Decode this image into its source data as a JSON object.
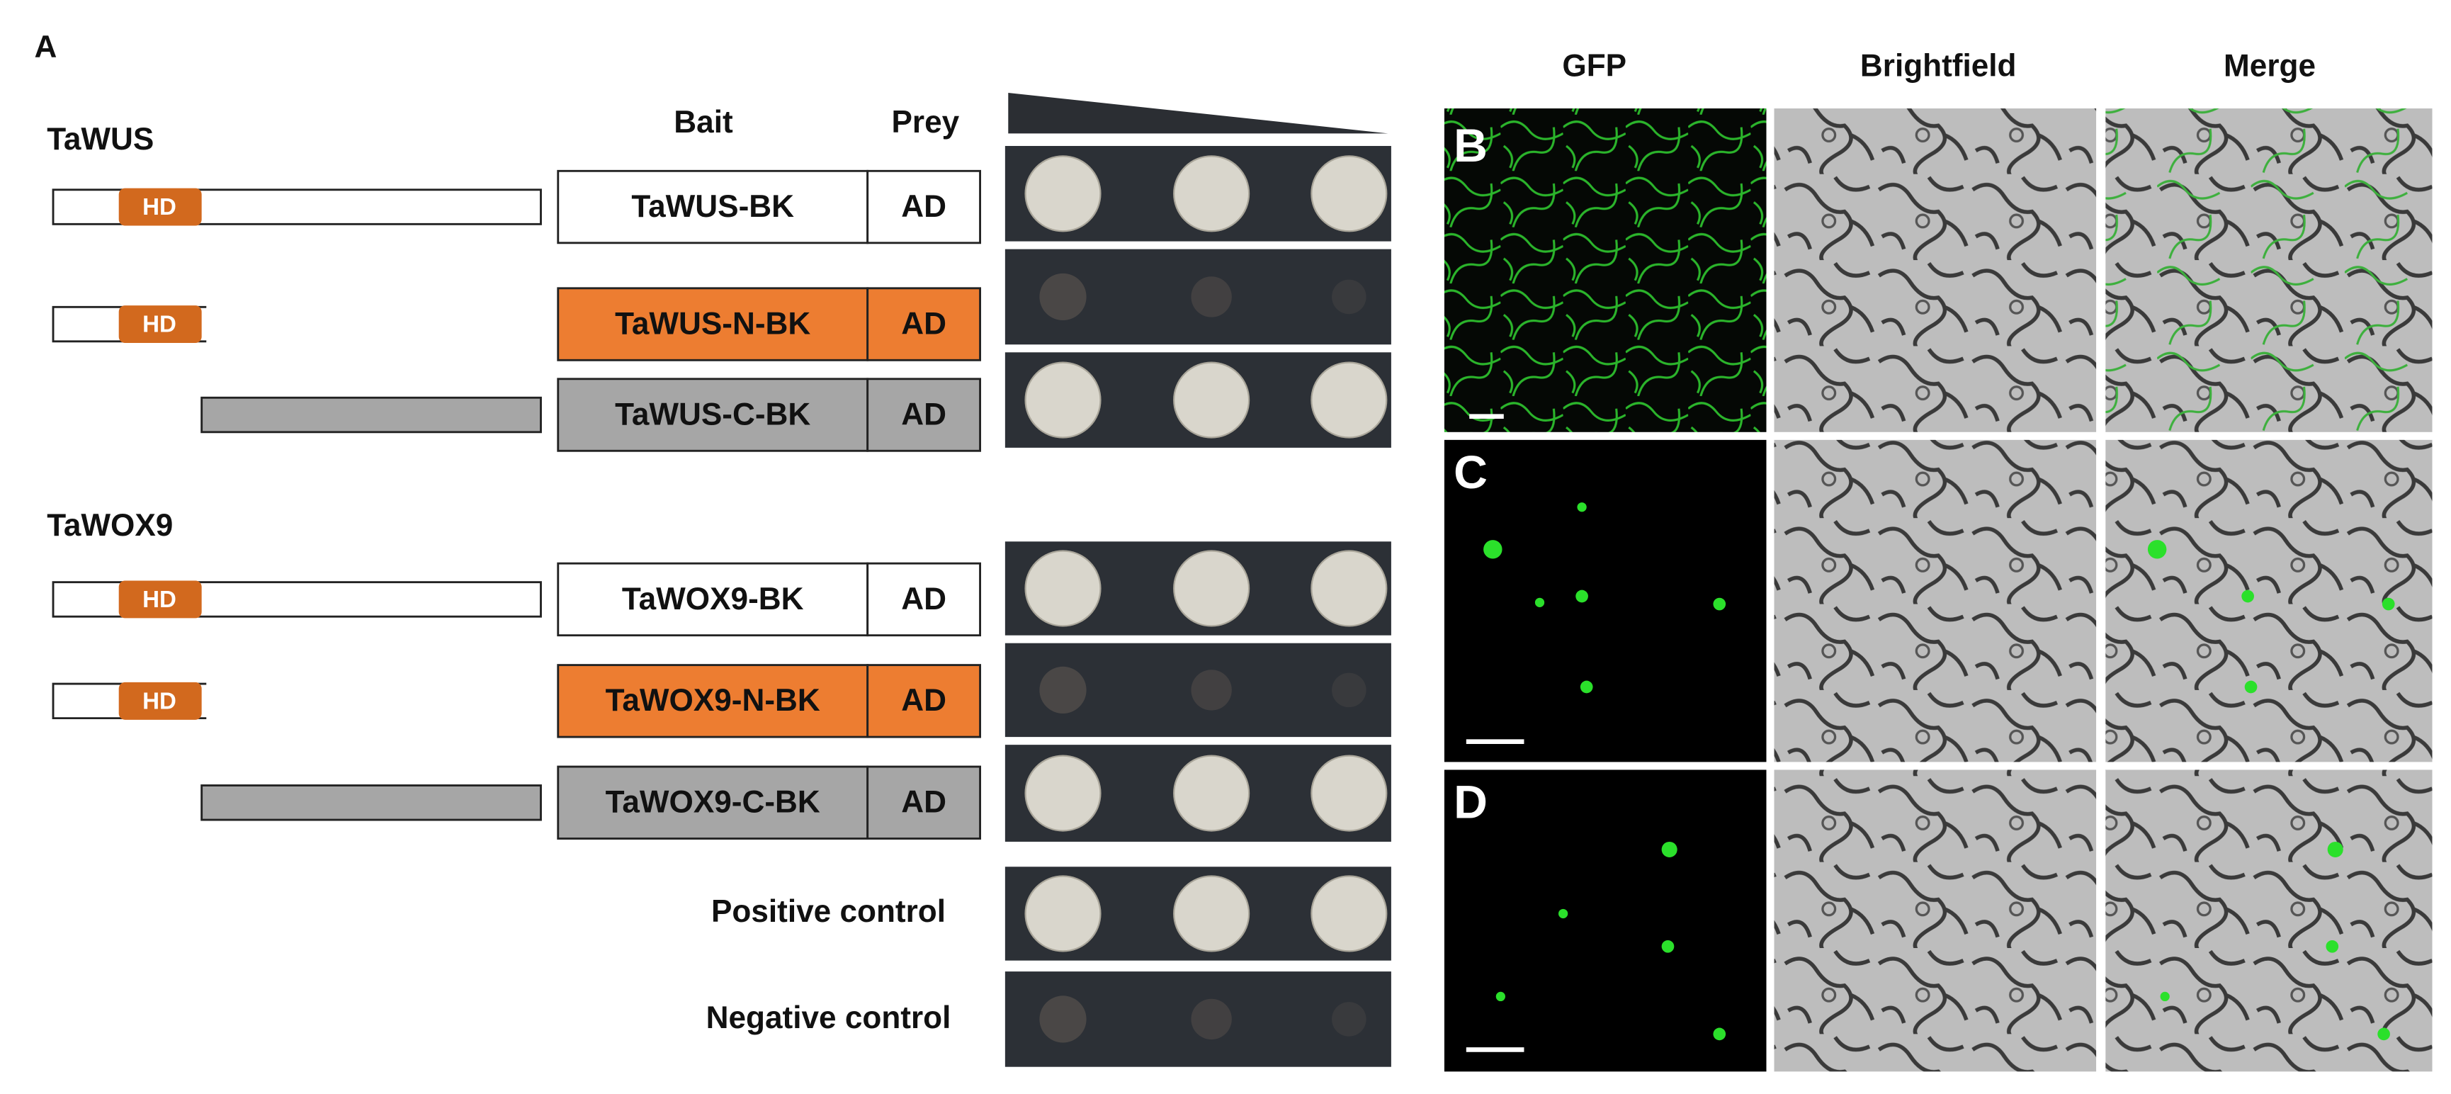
{
  "panel_a": {
    "label": "A",
    "bait_header": "Bait",
    "prey_header": "Prey",
    "groups": [
      {
        "name": "TaWUS",
        "rows": [
          {
            "domain": "HD",
            "bait": "TaWUS-BK",
            "prey": "AD"
          },
          {
            "domain": "HD",
            "bait": "TaWUS-N-BK",
            "prey": "AD"
          },
          {
            "bait": "TaWUS-C-BK",
            "prey": "AD"
          }
        ]
      },
      {
        "name": "TaWOX9",
        "rows": [
          {
            "domain": "HD",
            "bait": "TaWOX9-BK",
            "prey": "AD"
          },
          {
            "domain": "HD",
            "bait": "TaWOX9-N-BK",
            "prey": "AD"
          },
          {
            "bait": "TaWOX9-C-BK",
            "prey": "AD"
          }
        ]
      }
    ],
    "controls": [
      "Positive control",
      "Negative control"
    ]
  },
  "microscopy": {
    "columns": [
      "GFP",
      "Brightfield",
      "Merge"
    ],
    "row_labels": [
      "B",
      "C",
      "D"
    ]
  }
}
